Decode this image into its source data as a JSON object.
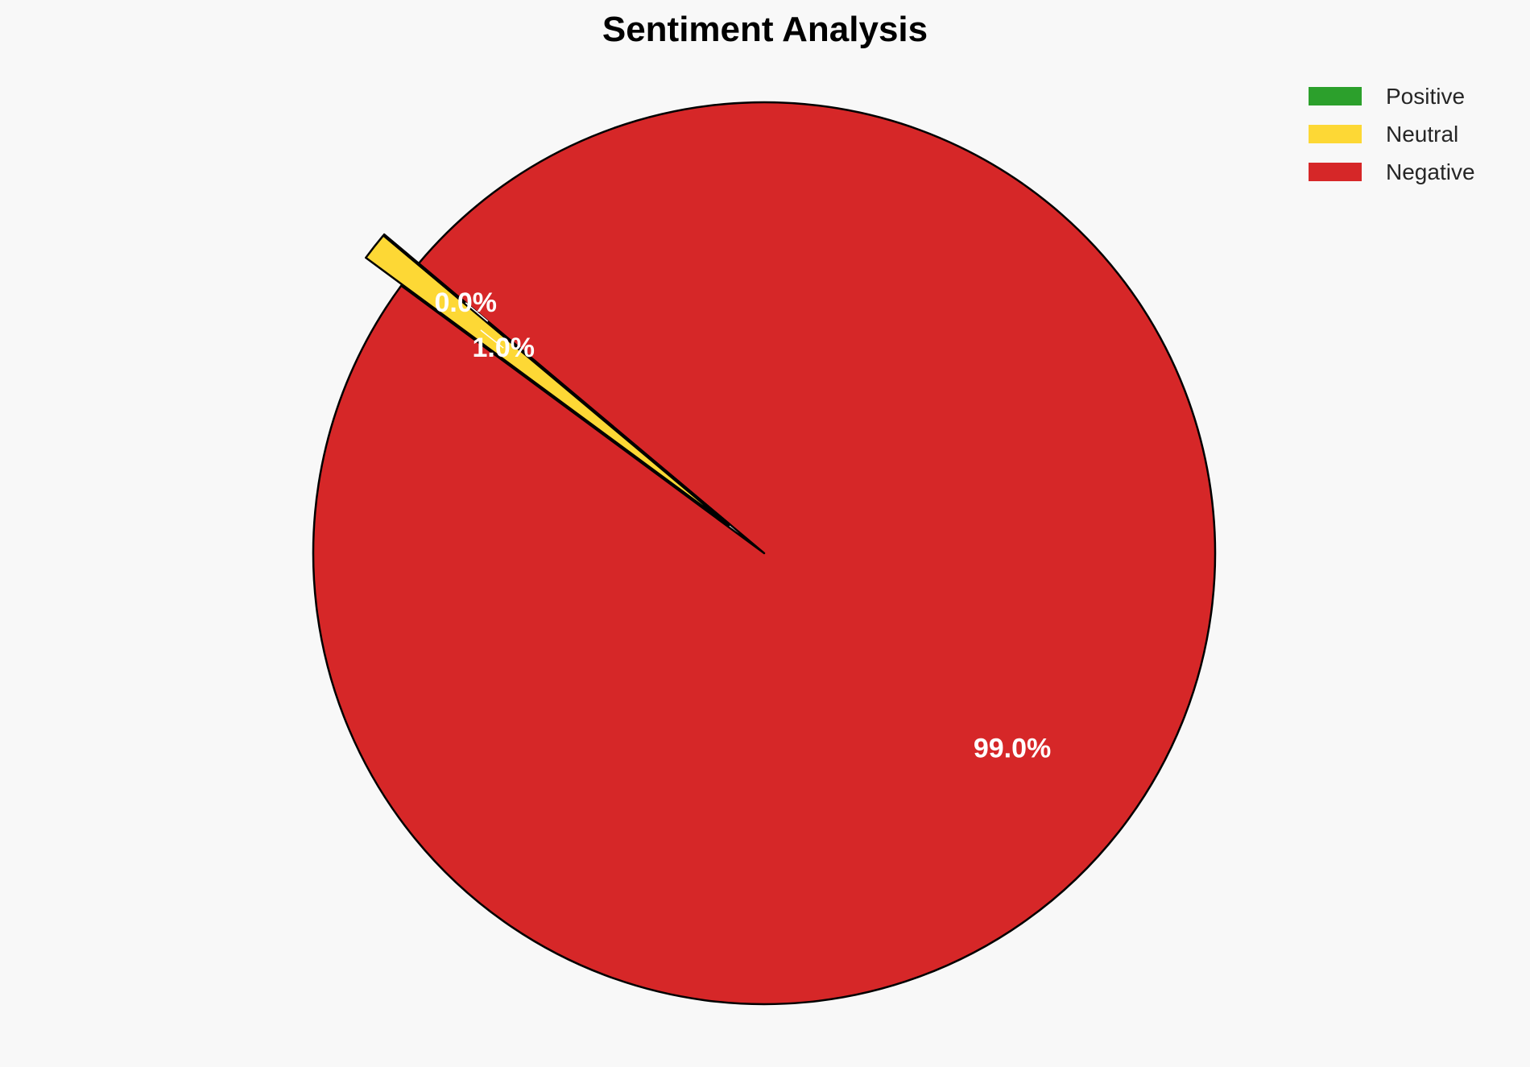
{
  "chart_data": {
    "type": "pie",
    "title": "Sentiment Analysis",
    "categories": [
      "Positive",
      "Neutral",
      "Negative"
    ],
    "values": [
      0.0,
      1.0,
      99.0
    ],
    "labels": [
      "0.0%",
      "1.0%",
      "99.0%"
    ],
    "colors": [
      "#2ca02c",
      "#fdd835",
      "#d62728"
    ],
    "explode": [
      0.1,
      0.1,
      0
    ],
    "start_angle": 140,
    "legend_placement": "upper-right",
    "edge_color": "#000000"
  }
}
